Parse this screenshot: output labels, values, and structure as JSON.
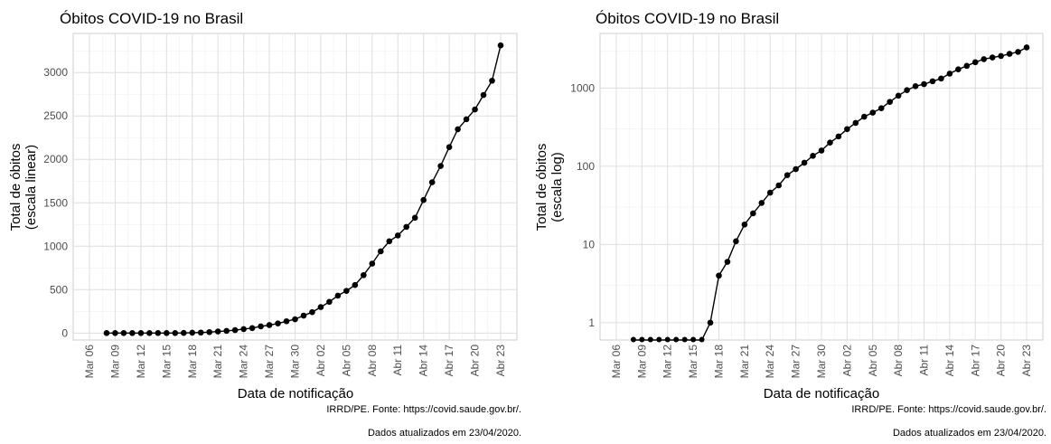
{
  "caption": {
    "source": "IRRD/PE. Fonte: https://covid.saude.gov.br/.",
    "updated": "Dados atualizados em  23/04/2020."
  },
  "chart_data": [
    {
      "type": "line",
      "title": "Óbitos COVID-19 no Brasil",
      "xlabel": "Data de notificação",
      "ylabel": [
        "Total de óbitos",
        "(escala linear)"
      ],
      "yscale": "linear",
      "ylim": [
        -80,
        3450
      ],
      "yticks": [
        0,
        500,
        1000,
        1500,
        2000,
        2500,
        3000
      ],
      "ytick_labels": [
        "0",
        "500",
        "1000",
        "1500",
        "2000",
        "2500",
        "3000"
      ],
      "x_start": "Mar 06",
      "x_end": "Abr 23",
      "xticks": [
        "Mar 06",
        "Mar 09",
        "Mar 12",
        "Mar 15",
        "Mar 18",
        "Mar 21",
        "Mar 24",
        "Mar 27",
        "Mar 30",
        "Abr 02",
        "Abr 05",
        "Abr 08",
        "Abr 11",
        "Abr 14",
        "Abr 17",
        "Abr 20",
        "Abr 23"
      ],
      "grid": true,
      "x": [
        "Mar 08",
        "Mar 09",
        "Mar 10",
        "Mar 11",
        "Mar 12",
        "Mar 13",
        "Mar 14",
        "Mar 15",
        "Mar 16",
        "Mar 17",
        "Mar 18",
        "Mar 19",
        "Mar 20",
        "Mar 21",
        "Mar 22",
        "Mar 23",
        "Mar 24",
        "Mar 25",
        "Mar 26",
        "Mar 27",
        "Mar 28",
        "Mar 29",
        "Mar 30",
        "Mar 31",
        "Abr 01",
        "Abr 02",
        "Abr 03",
        "Abr 04",
        "Abr 05",
        "Abr 06",
        "Abr 07",
        "Abr 08",
        "Abr 09",
        "Abr 10",
        "Abr 11",
        "Abr 12",
        "Abr 13",
        "Abr 14",
        "Abr 15",
        "Abr 16",
        "Abr 17",
        "Abr 18",
        "Abr 19",
        "Abr 20",
        "Abr 21",
        "Abr 22",
        "Abr 23"
      ],
      "values": [
        0,
        0,
        0,
        0,
        0,
        0,
        0,
        0,
        0,
        1,
        4,
        6,
        11,
        18,
        25,
        34,
        46,
        57,
        77,
        92,
        111,
        136,
        159,
        201,
        241,
        299,
        359,
        431,
        486,
        553,
        667,
        800,
        941,
        1057,
        1124,
        1223,
        1328,
        1532,
        1736,
        1924,
        2141,
        2347,
        2462,
        2575,
        2741,
        2906,
        3313
      ]
    },
    {
      "type": "line",
      "title": "Óbitos COVID-19 no Brasil",
      "xlabel": "Data de notificação",
      "ylabel": [
        "Total de óbitos",
        "(escala log)"
      ],
      "yscale": "log",
      "ylim": [
        0.6,
        5000
      ],
      "yticks": [
        1,
        10,
        100,
        1000
      ],
      "ytick_labels": [
        "1",
        "10",
        "100",
        "1000"
      ],
      "x_start": "Mar 06",
      "x_end": "Abr 23",
      "xticks": [
        "Mar 06",
        "Mar 09",
        "Mar 12",
        "Mar 15",
        "Mar 18",
        "Mar 21",
        "Mar 24",
        "Mar 27",
        "Mar 30",
        "Abr 02",
        "Abr 05",
        "Abr 08",
        "Abr 11",
        "Abr 14",
        "Abr 17",
        "Abr 20",
        "Abr 23"
      ],
      "grid": true,
      "x": [
        "Mar 08",
        "Mar 09",
        "Mar 10",
        "Mar 11",
        "Mar 12",
        "Mar 13",
        "Mar 14",
        "Mar 15",
        "Mar 16",
        "Mar 17",
        "Mar 18",
        "Mar 19",
        "Mar 20",
        "Mar 21",
        "Mar 22",
        "Mar 23",
        "Mar 24",
        "Mar 25",
        "Mar 26",
        "Mar 27",
        "Mar 28",
        "Mar 29",
        "Mar 30",
        "Mar 31",
        "Abr 01",
        "Abr 02",
        "Abr 03",
        "Abr 04",
        "Abr 05",
        "Abr 06",
        "Abr 07",
        "Abr 08",
        "Abr 09",
        "Abr 10",
        "Abr 11",
        "Abr 12",
        "Abr 13",
        "Abr 14",
        "Abr 15",
        "Abr 16",
        "Abr 17",
        "Abr 18",
        "Abr 19",
        "Abr 20",
        "Abr 21",
        "Abr 22",
        "Abr 23"
      ],
      "values": [
        0,
        0,
        0,
        0,
        0,
        0,
        0,
        0,
        0,
        1,
        4,
        6,
        11,
        18,
        25,
        34,
        46,
        57,
        77,
        92,
        111,
        136,
        159,
        201,
        241,
        299,
        359,
        431,
        486,
        553,
        667,
        800,
        941,
        1057,
        1124,
        1223,
        1328,
        1532,
        1736,
        1924,
        2141,
        2347,
        2462,
        2575,
        2741,
        2906,
        3313
      ]
    }
  ]
}
